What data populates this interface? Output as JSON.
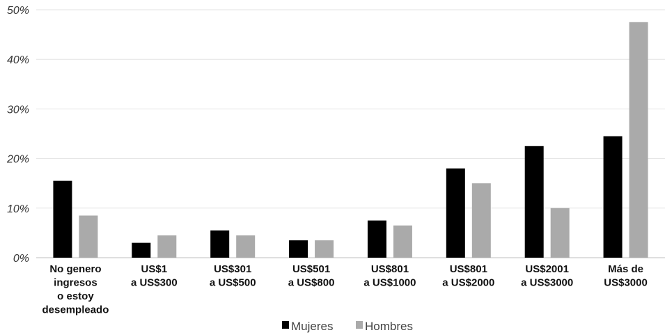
{
  "chart_data": {
    "type": "bar",
    "categories": [
      [
        "No genero",
        "ingresos",
        "o estoy",
        "desempleado"
      ],
      [
        "US$1",
        "a US$300"
      ],
      [
        "US$301",
        "a US$500"
      ],
      [
        "US$501",
        "a US$800"
      ],
      [
        "US$801",
        "a US$1000"
      ],
      [
        "US$801",
        "a US$2000"
      ],
      [
        "US$2001",
        "a US$3000"
      ],
      [
        "Más de",
        "US$3000"
      ]
    ],
    "series": [
      {
        "name": "Mujeres",
        "color": "#000000",
        "values": [
          15.5,
          3.0,
          5.5,
          3.5,
          7.5,
          18.0,
          22.5,
          24.5
        ]
      },
      {
        "name": "Hombres",
        "color": "#aaaaaa",
        "values": [
          8.5,
          4.5,
          4.5,
          3.5,
          6.5,
          15.0,
          10.0,
          47.5
        ]
      }
    ],
    "yticks": [
      "0%",
      "10%",
      "20%",
      "30%",
      "40%",
      "50%"
    ],
    "ylim": [
      0,
      50
    ],
    "grid": true,
    "legend": "bottom-center",
    "title": "",
    "xlabel": "",
    "ylabel": ""
  }
}
